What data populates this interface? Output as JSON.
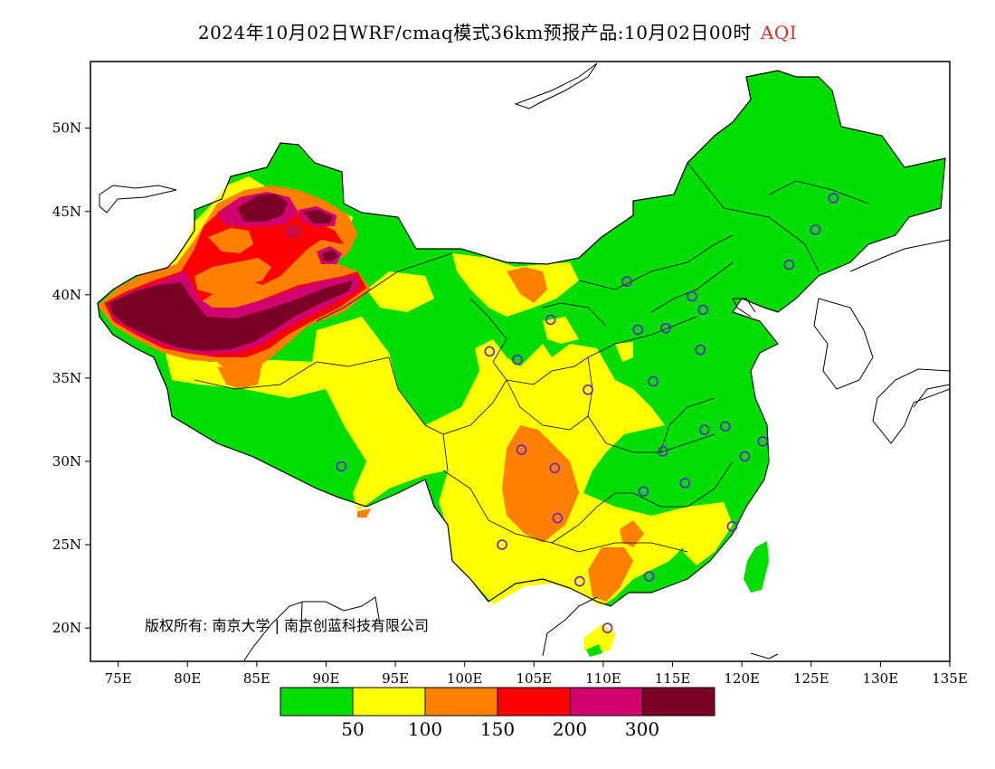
{
  "title": {
    "main": "2024年10月02日WRF/cmaq模式36km预报产品:10月02日00时",
    "variable": "AQI"
  },
  "map": {
    "lon_range": [
      73,
      135
    ],
    "lat_range": [
      18,
      54
    ],
    "x_ticks": [
      "75E",
      "80E",
      "85E",
      "90E",
      "95E",
      "100E",
      "105E",
      "110E",
      "115E",
      "120E",
      "125E",
      "130E",
      "135E"
    ],
    "y_ticks": [
      "50N",
      "45N",
      "40N",
      "35N",
      "30N",
      "25N",
      "20N"
    ],
    "copyright": "版权所有: 南京大学 | 南京创蓝科技有限公司"
  },
  "legend": {
    "colors": [
      "#00dd00",
      "#ffff00",
      "#ff8000",
      "#ff0000",
      "#d0006e",
      "#7a0025"
    ],
    "labels": [
      "50",
      "100",
      "150",
      "200",
      "300"
    ]
  },
  "stations": [
    [
      116.4,
      39.9
    ],
    [
      117.2,
      39.1
    ],
    [
      114.5,
      38.0
    ],
    [
      112.5,
      37.9
    ],
    [
      111.7,
      40.8
    ],
    [
      123.4,
      41.8
    ],
    [
      125.3,
      43.9
    ],
    [
      126.6,
      45.8
    ],
    [
      117.0,
      36.7
    ],
    [
      113.6,
      34.8
    ],
    [
      108.9,
      34.3
    ],
    [
      103.8,
      36.1
    ],
    [
      101.8,
      36.6
    ],
    [
      106.2,
      38.5
    ],
    [
      87.6,
      43.8
    ],
    [
      91.1,
      29.7
    ],
    [
      104.1,
      30.7
    ],
    [
      106.5,
      29.6
    ],
    [
      106.7,
      26.6
    ],
    [
      102.7,
      25.0
    ],
    [
      108.3,
      22.8
    ],
    [
      113.3,
      23.1
    ],
    [
      110.3,
      20.0
    ],
    [
      112.9,
      28.2
    ],
    [
      114.3,
      30.6
    ],
    [
      115.9,
      28.7
    ],
    [
      117.3,
      31.9
    ],
    [
      118.8,
      32.1
    ],
    [
      120.2,
      30.3
    ],
    [
      121.5,
      31.2
    ],
    [
      119.3,
      26.1
    ]
  ]
}
